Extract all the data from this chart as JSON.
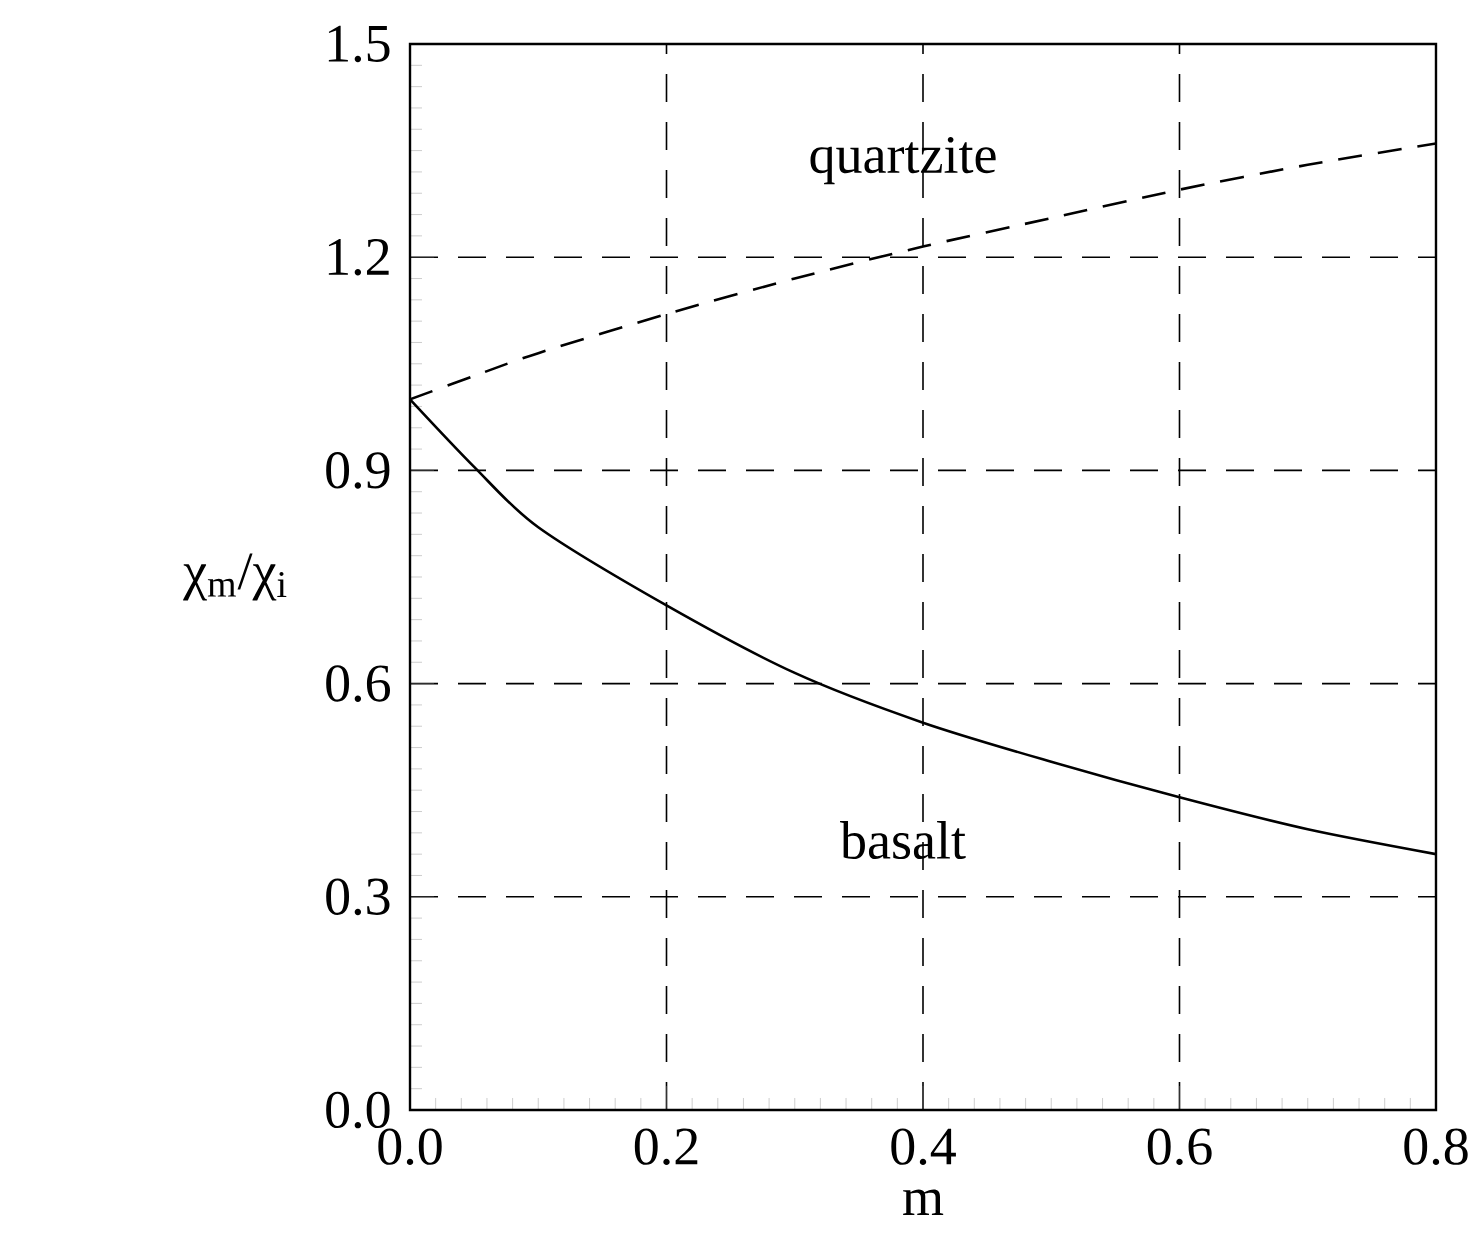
{
  "chart_data": {
    "type": "line",
    "xlabel": "m",
    "ylabel": "χ$_{m}$/χ$_{i}$",
    "x": [
      0,
      0.05,
      0.1,
      0.2,
      0.3,
      0.4,
      0.5,
      0.6,
      0.7,
      0.8
    ],
    "series": [
      {
        "name": "quartzite",
        "color": "#000000",
        "line_style": "dashed",
        "values": [
          1.0,
          1.033,
          1.065,
          1.12,
          1.17,
          1.215,
          1.255,
          1.295,
          1.33,
          1.36
        ]
      },
      {
        "name": "basalt",
        "color": "#000000",
        "line_style": "solid",
        "values": [
          1.0,
          0.905,
          0.82,
          0.71,
          0.615,
          0.545,
          0.49,
          0.44,
          0.395,
          0.36
        ]
      }
    ],
    "xlim": [
      0,
      0.8
    ],
    "ylim": [
      0,
      1.5
    ],
    "xticks": [
      {
        "value": 0,
        "label": "0.0"
      },
      0.2,
      0.4,
      0.6,
      0.8
    ],
    "yticks": [
      {
        "value": 0,
        "label": "0.0"
      },
      0.3,
      0.6,
      0.9,
      1.2,
      1.5
    ],
    "grid": true
  }
}
